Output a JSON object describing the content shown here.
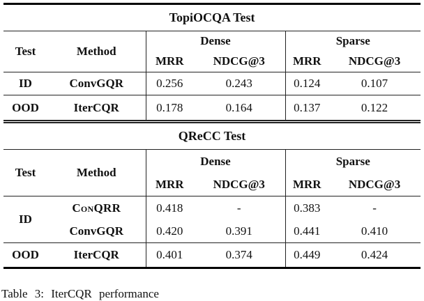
{
  "colors": {
    "background": "#ffffff",
    "text": "#111111",
    "rule": "#222222",
    "thick_rule": "#000000"
  },
  "tables": [
    {
      "title": "TopiOCQA Test",
      "headers": {
        "test": "Test",
        "method": "Method",
        "dense": "Dense",
        "sparse": "Sparse",
        "mrr": "MRR",
        "ndcg3": "NDCG@3"
      },
      "rows": [
        {
          "test": "ID",
          "method": "ConvGQR",
          "dense_mrr": "0.256",
          "dense_ndcg3": "0.243",
          "sparse_mrr": "0.124",
          "sparse_ndcg3": "0.107"
        },
        {
          "test": "OOD",
          "method": "IterCQR",
          "dense_mrr": "0.178",
          "dense_ndcg3": "0.164",
          "sparse_mrr": "0.137",
          "sparse_ndcg3": "0.122"
        }
      ]
    },
    {
      "title": "QReCC Test",
      "headers": {
        "test": "Test",
        "method": "Method",
        "dense": "Dense",
        "sparse": "Sparse",
        "mrr": "MRR",
        "ndcg3": "NDCG@3"
      },
      "rows": [
        {
          "test": "ID",
          "method": "ConQRR",
          "dense_mrr": "0.418",
          "dense_ndcg3": "-",
          "sparse_mrr": "0.383",
          "sparse_ndcg3": "-"
        },
        {
          "test": "",
          "method": "ConvGQR",
          "dense_mrr": "0.420",
          "dense_ndcg3": "0.391",
          "sparse_mrr": "0.441",
          "sparse_ndcg3": "0.410"
        },
        {
          "test": "OOD",
          "method": "IterCQR",
          "dense_mrr": "0.401",
          "dense_ndcg3": "0.374",
          "sparse_mrr": "0.449",
          "sparse_ndcg3": "0.424"
        }
      ]
    }
  ],
  "caption": {
    "text": "Table 3: IterCQR performance"
  }
}
